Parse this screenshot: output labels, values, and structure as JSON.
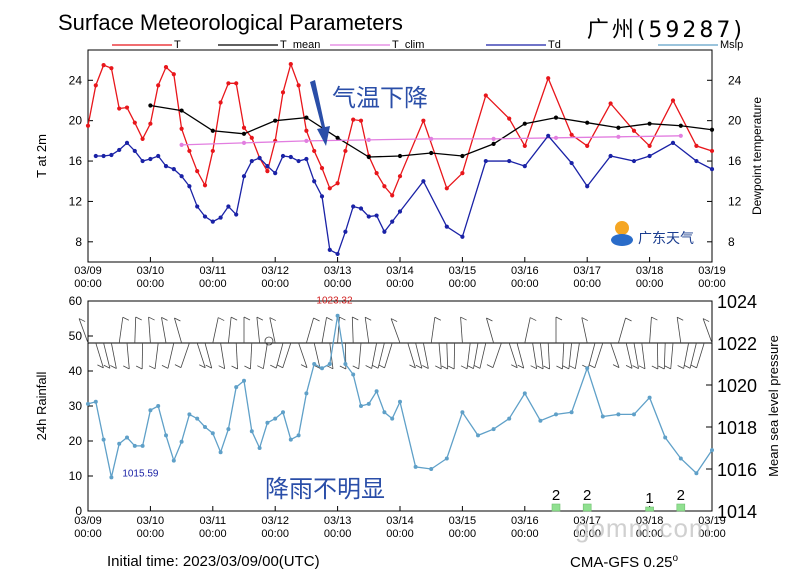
{
  "header": {
    "title": "Surface Meteorological Parameters",
    "station": "广州(59287)"
  },
  "footer": {
    "initial_time": "Initial time: 2023/03/09/00(UTC)",
    "model": "CMA-GFS  0.25",
    "degree_mark": "o"
  },
  "logo": {
    "text": "广东天气",
    "icon": "sun-cloud-logo-icon"
  },
  "watermark": "gomm.com",
  "colors": {
    "T": "#e8161b",
    "T_mean": "#000000",
    "T_clim": "#e27ee0",
    "Td": "#1a22a6",
    "Mslp": "#5fa0c8",
    "rain": "#90e090",
    "annotation": "#2a4ea8"
  },
  "chart_data": [
    {
      "type": "line",
      "name": "temperature-panel",
      "legend": [
        "T",
        "T_mean",
        "T_clim",
        "Td",
        "Mslp"
      ],
      "ylabel": "T at 2m",
      "y2label": "Dewpoint temperature",
      "ylim": [
        6,
        27
      ],
      "yticks": [
        8,
        12,
        16,
        20,
        24
      ],
      "xlim": [
        0,
        10
      ],
      "xticks": [
        "03/09\n00:00",
        "03/10\n00:00",
        "03/11\n00:00",
        "03/12\n00:00",
        "03/13\n00:00",
        "03/14\n00:00",
        "03/15\n00:00",
        "03/16\n00:00",
        "03/17\n00:00",
        "03/18\n00:00",
        "03/19\n00:00"
      ],
      "annotation": "气温下降",
      "series": [
        {
          "name": "T",
          "points": [
            [
              0.0,
              19.5
            ],
            [
              0.125,
              23.5
            ],
            [
              0.25,
              25.5
            ],
            [
              0.375,
              25.2
            ],
            [
              0.5,
              21.2
            ],
            [
              0.625,
              21.3
            ],
            [
              0.75,
              19.8
            ],
            [
              0.875,
              18.2
            ],
            [
              1.0,
              19.7
            ],
            [
              1.125,
              23.5
            ],
            [
              1.25,
              25.3
            ],
            [
              1.375,
              24.6
            ],
            [
              1.5,
              19.2
            ],
            [
              1.625,
              17.0
            ],
            [
              1.75,
              15.0
            ],
            [
              1.875,
              13.6
            ],
            [
              2.0,
              17.0
            ],
            [
              2.125,
              21.8
            ],
            [
              2.25,
              23.7
            ],
            [
              2.375,
              23.7
            ],
            [
              2.5,
              19.3
            ],
            [
              2.625,
              18.3
            ],
            [
              2.75,
              16.3
            ],
            [
              2.875,
              15.0
            ],
            [
              3.0,
              18.0
            ],
            [
              3.125,
              22.8
            ],
            [
              3.25,
              25.6
            ],
            [
              3.375,
              23.5
            ],
            [
              3.5,
              19.0
            ],
            [
              3.625,
              17.0
            ],
            [
              3.75,
              15.3
            ],
            [
              3.875,
              13.3
            ],
            [
              4.0,
              13.8
            ],
            [
              4.125,
              17.0
            ],
            [
              4.25,
              20.1
            ],
            [
              4.375,
              20.0
            ],
            [
              4.5,
              16.5
            ],
            [
              4.625,
              14.8
            ],
            [
              4.75,
              13.5
            ],
            [
              4.875,
              12.6
            ],
            [
              5.0,
              14.5
            ],
            [
              5.375,
              20.0
            ],
            [
              5.75,
              13.3
            ],
            [
              6.0,
              14.8
            ],
            [
              6.375,
              22.5
            ],
            [
              6.75,
              20.2
            ],
            [
              7.0,
              17.5
            ],
            [
              7.375,
              24.2
            ],
            [
              7.75,
              18.6
            ],
            [
              8.0,
              17.5
            ],
            [
              8.375,
              21.7
            ],
            [
              8.75,
              19.0
            ],
            [
              9.0,
              17.5
            ],
            [
              9.375,
              22.0
            ],
            [
              9.75,
              17.5
            ],
            [
              10.0,
              17.0
            ]
          ]
        },
        {
          "name": "T_mean",
          "points": [
            [
              1.0,
              21.5
            ],
            [
              1.5,
              21.0
            ],
            [
              2.0,
              19.0
            ],
            [
              2.5,
              18.7
            ],
            [
              3.0,
              20.0
            ],
            [
              3.5,
              20.3
            ],
            [
              4.0,
              18.3
            ],
            [
              4.5,
              16.4
            ],
            [
              5.0,
              16.5
            ],
            [
              5.5,
              16.8
            ],
            [
              6.0,
              16.5
            ],
            [
              6.5,
              17.7
            ],
            [
              7.0,
              19.7
            ],
            [
              7.5,
              20.3
            ],
            [
              8.0,
              19.8
            ],
            [
              8.5,
              19.3
            ],
            [
              9.0,
              19.7
            ],
            [
              9.5,
              19.5
            ],
            [
              10.0,
              19.1
            ]
          ]
        },
        {
          "name": "T_clim",
          "points": [
            [
              1.5,
              17.6
            ],
            [
              2.5,
              17.8
            ],
            [
              3.5,
              18.0
            ],
            [
              4.5,
              18.1
            ],
            [
              5.5,
              18.2
            ],
            [
              6.5,
              18.2
            ],
            [
              7.5,
              18.3
            ],
            [
              8.5,
              18.4
            ],
            [
              9.5,
              18.5
            ]
          ]
        },
        {
          "name": "Td",
          "points": [
            [
              0.125,
              16.5
            ],
            [
              0.25,
              16.5
            ],
            [
              0.375,
              16.6
            ],
            [
              0.5,
              17.1
            ],
            [
              0.625,
              17.8
            ],
            [
              0.75,
              17.0
            ],
            [
              0.875,
              16.0
            ],
            [
              1.0,
              16.2
            ],
            [
              1.125,
              16.5
            ],
            [
              1.25,
              15.5
            ],
            [
              1.375,
              15.2
            ],
            [
              1.5,
              14.5
            ],
            [
              1.625,
              13.5
            ],
            [
              1.75,
              11.5
            ],
            [
              1.875,
              10.5
            ],
            [
              2.0,
              10.0
            ],
            [
              2.125,
              10.4
            ],
            [
              2.25,
              11.5
            ],
            [
              2.375,
              10.7
            ],
            [
              2.5,
              14.5
            ],
            [
              2.625,
              16.0
            ],
            [
              2.75,
              16.3
            ],
            [
              2.875,
              15.5
            ],
            [
              3.0,
              14.8
            ],
            [
              3.125,
              16.5
            ],
            [
              3.25,
              16.4
            ],
            [
              3.375,
              16.0
            ],
            [
              3.5,
              16.2
            ],
            [
              3.625,
              14.0
            ],
            [
              3.75,
              12.5
            ],
            [
              3.875,
              7.2
            ],
            [
              4.0,
              6.8
            ],
            [
              4.125,
              9.0
            ],
            [
              4.25,
              11.5
            ],
            [
              4.375,
              11.3
            ],
            [
              4.5,
              10.5
            ],
            [
              4.625,
              10.6
            ],
            [
              4.75,
              9.0
            ],
            [
              4.875,
              10.0
            ],
            [
              5.0,
              11.0
            ],
            [
              5.375,
              14.0
            ],
            [
              5.75,
              9.5
            ],
            [
              6.0,
              8.5
            ],
            [
              6.375,
              16.0
            ],
            [
              6.75,
              16.0
            ],
            [
              7.0,
              15.5
            ],
            [
              7.375,
              18.5
            ],
            [
              7.75,
              15.8
            ],
            [
              8.0,
              13.5
            ],
            [
              8.375,
              16.5
            ],
            [
              8.75,
              16.0
            ],
            [
              9.0,
              16.5
            ],
            [
              9.375,
              17.8
            ],
            [
              9.75,
              16.0
            ],
            [
              10.0,
              15.2
            ]
          ]
        }
      ]
    },
    {
      "type": "line",
      "name": "rain-pressure-panel",
      "ylabel": "24h Rainfall",
      "y2label": "Mean sea level pressure",
      "ylim": [
        0,
        60
      ],
      "yticks": [
        0,
        10,
        20,
        30,
        40,
        50,
        60
      ],
      "y2lim": [
        1014,
        1024
      ],
      "y2ticks": [
        1014,
        1016,
        1018,
        1020,
        1022,
        1024
      ],
      "xlim": [
        0,
        10
      ],
      "xticks": [
        "03/09\n00:00",
        "03/10\n00:00",
        "03/11\n00:00",
        "03/12\n00:00",
        "03/13\n00:00",
        "03/14\n00:00",
        "03/15\n00:00",
        "03/16\n00:00",
        "03/17\n00:00",
        "03/18\n00:00",
        "03/19\n00:00"
      ],
      "max_label": "1023.32",
      "min_label": "1015.59",
      "annotation": "降雨不明显",
      "series": [
        {
          "name": "Mslp",
          "points": [
            [
              0.0,
              1019.1
            ],
            [
              0.125,
              1019.2
            ],
            [
              0.25,
              1017.4
            ],
            [
              0.375,
              1015.6
            ],
            [
              0.5,
              1017.2
            ],
            [
              0.625,
              1017.5
            ],
            [
              0.75,
              1017.1
            ],
            [
              0.875,
              1017.1
            ],
            [
              1.0,
              1018.8
            ],
            [
              1.125,
              1019.0
            ],
            [
              1.25,
              1017.6
            ],
            [
              1.375,
              1016.4
            ],
            [
              1.5,
              1017.3
            ],
            [
              1.625,
              1018.6
            ],
            [
              1.75,
              1018.4
            ],
            [
              1.875,
              1018.0
            ],
            [
              2.0,
              1017.7
            ],
            [
              2.125,
              1016.8
            ],
            [
              2.25,
              1017.9
            ],
            [
              2.375,
              1019.9
            ],
            [
              2.5,
              1020.2
            ],
            [
              2.625,
              1017.8
            ],
            [
              2.75,
              1017.0
            ],
            [
              2.875,
              1018.2
            ],
            [
              3.0,
              1018.4
            ],
            [
              3.125,
              1018.7
            ],
            [
              3.25,
              1017.4
            ],
            [
              3.375,
              1017.6
            ],
            [
              3.5,
              1019.6
            ],
            [
              3.625,
              1021.0
            ],
            [
              3.75,
              1020.8
            ],
            [
              3.875,
              1021.0
            ],
            [
              4.0,
              1023.3
            ],
            [
              4.125,
              1021.0
            ],
            [
              4.25,
              1020.5
            ],
            [
              4.375,
              1019.0
            ],
            [
              4.5,
              1019.1
            ],
            [
              4.625,
              1019.7
            ],
            [
              4.75,
              1018.7
            ],
            [
              4.875,
              1018.4
            ],
            [
              5.0,
              1019.2
            ],
            [
              5.25,
              1016.1
            ],
            [
              5.5,
              1016.0
            ],
            [
              5.75,
              1016.5
            ],
            [
              6.0,
              1018.7
            ],
            [
              6.25,
              1017.6
            ],
            [
              6.5,
              1017.9
            ],
            [
              6.75,
              1018.4
            ],
            [
              7.0,
              1019.6
            ],
            [
              7.25,
              1018.3
            ],
            [
              7.5,
              1018.6
            ],
            [
              7.75,
              1018.7
            ],
            [
              8.0,
              1020.8
            ],
            [
              8.25,
              1018.5
            ],
            [
              8.5,
              1018.6
            ],
            [
              8.75,
              1018.6
            ],
            [
              9.0,
              1019.4
            ],
            [
              9.25,
              1017.5
            ],
            [
              9.5,
              1016.5
            ],
            [
              9.75,
              1015.8
            ],
            [
              10.0,
              1016.9
            ]
          ]
        }
      ],
      "rain_bars": [
        {
          "x": 7.5,
          "value": 2
        },
        {
          "x": 8.0,
          "value": 2
        },
        {
          "x": 9.0,
          "value": 1
        },
        {
          "x": 9.5,
          "value": 2
        }
      ],
      "rain_bar_labels": [
        "2",
        "2",
        "1",
        "2"
      ]
    }
  ]
}
